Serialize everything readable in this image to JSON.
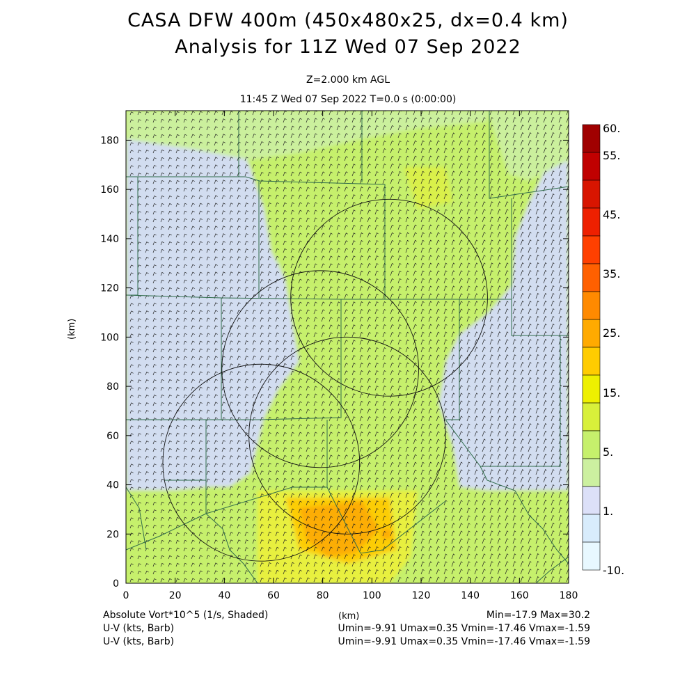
{
  "header": {
    "title_line1": "CASA DFW 400m (450x480x25, dx=0.4 km)",
    "title_line2": "Analysis for 11Z Wed 07 Sep 2022",
    "level": "Z=2.000 km AGL",
    "time": "11:45 Z Wed 07 Sep 2022    T=0.0 s (0:00:00)"
  },
  "axes": {
    "x_unit": "(km)",
    "y_unit": "(km)",
    "x_ticks": [
      "0",
      "20",
      "40",
      "60",
      "80",
      "100",
      "120",
      "140",
      "160",
      "180"
    ],
    "y_ticks": [
      "0",
      "20",
      "40",
      "60",
      "80",
      "100",
      "120",
      "140",
      "160",
      "180"
    ],
    "x_range": [
      0,
      180
    ],
    "y_range": [
      0,
      192
    ]
  },
  "colorbar": {
    "labels": [
      "60.",
      "55.",
      "45.",
      "35.",
      "25.",
      "15.",
      "5.",
      "1.",
      "-10."
    ],
    "colors_top_to_bottom": [
      "#a00000",
      "#c00000",
      "#d81500",
      "#ee2000",
      "#ff4000",
      "#ff6000",
      "#ff8a00",
      "#ffaa00",
      "#ffcc00",
      "#eef000",
      "#d8f03a",
      "#c6f06c",
      "#ccf0a0",
      "#dce0f8",
      "#d8ecfc",
      "#e8f8ff"
    ]
  },
  "footer": {
    "field_label": "Absolute Vort*10^5 (1/s, Shaded)",
    "x_unit": "(km)",
    "minmax": "Min=-17.9 Max=30.2",
    "barb1_label": "U-V (kts, Barb)",
    "barb1_stats": "Umin=-9.91 Umax=0.35 Vmin=-17.46 Vmax=-1.59",
    "barb2_label": "U-V (kts, Barb)",
    "barb2_stats": "Umin=-9.91 Umax=0.35 Vmin=-17.46 Vmax=-1.59"
  },
  "colors": {
    "lavender": "#d3dcf8",
    "green": "#c6f06c",
    "light_green": "#ccf0a0",
    "yellow": "#eaf03c",
    "gold": "#ffcc00",
    "orange": "#ffaa00",
    "county_lines": "#2f6b4a"
  },
  "radars": [
    {
      "name": "radar-ring-north",
      "x_km": 107,
      "y_km": 116,
      "r_km": 40
    },
    {
      "name": "radar-ring-center",
      "x_km": 79,
      "y_km": 87,
      "r_km": 40
    },
    {
      "name": "radar-ring-southeast",
      "x_km": 90,
      "y_km": 60,
      "r_km": 40
    },
    {
      "name": "radar-ring-southwest",
      "x_km": 55,
      "y_km": 49,
      "r_km": 40
    }
  ]
}
